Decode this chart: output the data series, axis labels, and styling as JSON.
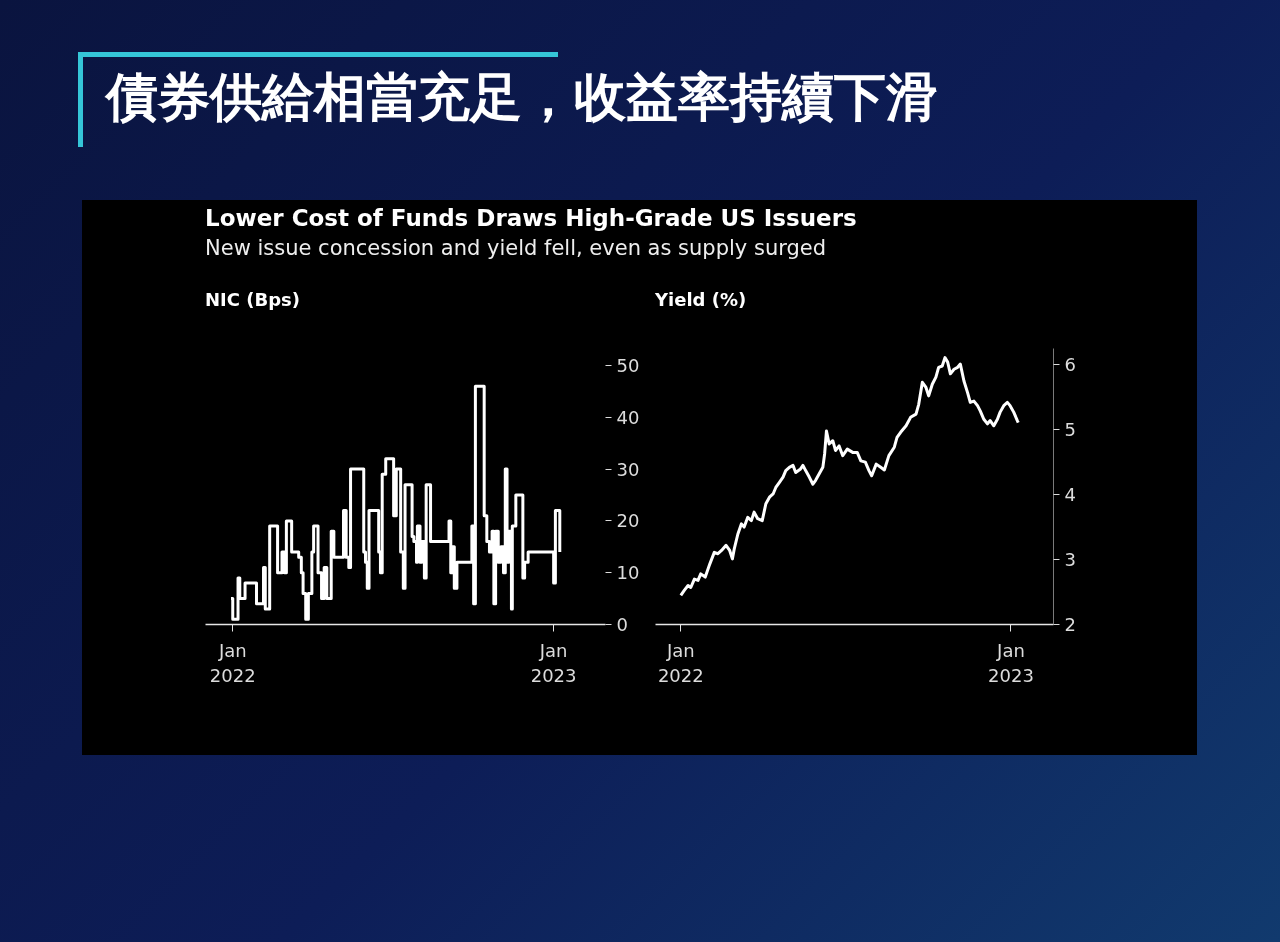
{
  "chart_data": [
    {
      "type": "other",
      "title": "債券供給相當充足，收益率持續下滑"
    },
    {
      "type": "step",
      "title": "Lower Cost of Funds Draws High-Grade US Issuers",
      "subtitle": "New issue concession and yield fell, even as supply surged",
      "ylabel": "NIC (Bps)",
      "color": "#ffffff",
      "x": [
        "2021-12-30",
        "2022-01-01",
        "2022-01-07",
        "2022-01-09",
        "2022-01-15",
        "2022-01-28",
        "2022-02-05",
        "2022-02-07",
        "2022-02-12",
        "2022-02-21",
        "2022-02-26",
        "2022-03-01",
        "2022-03-03",
        "2022-03-09",
        "2022-03-17",
        "2022-03-20",
        "2022-03-22",
        "2022-03-25",
        "2022-03-28",
        "2022-04-01",
        "2022-04-03",
        "2022-04-08",
        "2022-04-12",
        "2022-04-15",
        "2022-04-18",
        "2022-04-23",
        "2022-04-26",
        "2022-05-07",
        "2022-05-10",
        "2022-05-13",
        "2022-05-15",
        "2022-05-30",
        "2022-06-01",
        "2022-06-03",
        "2022-06-05",
        "2022-06-16",
        "2022-06-18",
        "2022-06-20",
        "2022-06-24",
        "2022-07-03",
        "2022-07-06",
        "2022-07-11",
        "2022-07-14",
        "2022-07-16",
        "2022-07-24",
        "2022-07-26",
        "2022-07-29",
        "2022-07-30",
        "2022-08-02",
        "2022-08-04",
        "2022-08-07",
        "2022-08-09",
        "2022-08-14",
        "2022-09-04",
        "2022-09-06",
        "2022-09-08",
        "2022-09-10",
        "2022-09-13",
        "2022-09-30",
        "2022-10-02",
        "2022-10-04",
        "2022-10-14",
        "2022-10-17",
        "2022-10-20",
        "2022-10-23",
        "2022-10-25",
        "2022-10-27",
        "2022-10-30",
        "2022-11-02",
        "2022-11-05",
        "2022-11-07",
        "2022-11-09",
        "2022-11-11",
        "2022-11-14",
        "2022-11-15",
        "2022-11-19",
        "2022-11-27",
        "2022-11-29",
        "2022-12-03",
        "2023-01-01",
        "2023-01-03",
        "2023-01-08"
      ],
      "values": [
        5,
        1,
        9,
        5,
        8,
        4,
        11,
        3,
        19,
        10,
        14,
        10,
        20,
        14,
        13,
        10,
        6,
        1,
        6,
        14,
        19,
        10,
        5,
        11,
        5,
        18,
        13,
        22,
        13,
        11,
        30,
        14,
        12,
        7,
        22,
        14,
        10,
        29,
        32,
        21,
        30,
        14,
        7,
        27,
        17,
        16,
        12,
        19,
        12,
        16,
        9,
        27,
        16,
        20,
        10,
        15,
        7,
        12,
        19,
        4,
        46,
        21,
        16,
        14,
        18,
        4,
        18,
        12,
        15,
        10,
        30,
        12,
        18,
        3,
        19,
        25,
        9,
        12,
        14,
        8,
        22,
        14
      ],
      "xlim": [
        "2021-12-01",
        "2023-03-01"
      ],
      "xticks": [
        {
          "value": "2022-01-01",
          "label": "Jan\n2022"
        },
        {
          "value": "2023-01-01",
          "label": "Jan\n2023"
        }
      ],
      "ylim": [
        0,
        50
      ],
      "yticks": [
        0,
        10,
        20,
        30,
        40,
        50
      ]
    },
    {
      "type": "line",
      "ylabel": "Yield (%)",
      "color": "#ffffff",
      "x": [
        "2022-01-01",
        "2022-01-05",
        "2022-01-09",
        "2022-01-12",
        "2022-01-16",
        "2022-01-20",
        "2022-01-23",
        "2022-01-28",
        "2022-02-02",
        "2022-02-07",
        "2022-02-11",
        "2022-02-15",
        "2022-02-20",
        "2022-02-24",
        "2022-02-27",
        "2022-03-01",
        "2022-03-05",
        "2022-03-09",
        "2022-03-12",
        "2022-03-16",
        "2022-03-20",
        "2022-03-23",
        "2022-03-27",
        "2022-04-01",
        "2022-04-05",
        "2022-04-09",
        "2022-04-13",
        "2022-04-16",
        "2022-04-20",
        "2022-04-24",
        "2022-04-27",
        "2022-05-01",
        "2022-05-05",
        "2022-05-08",
        "2022-05-13",
        "2022-05-16",
        "2022-05-19",
        "2022-05-23",
        "2022-05-27",
        "2022-05-30",
        "2022-06-03",
        "2022-06-07",
        "2022-06-09",
        "2022-06-11",
        "2022-06-14",
        "2022-06-18",
        "2022-06-21",
        "2022-06-25",
        "2022-06-29",
        "2022-07-04",
        "2022-07-10",
        "2022-07-15",
        "2022-07-19",
        "2022-07-24",
        "2022-07-28",
        "2022-07-31",
        "2022-08-05",
        "2022-08-10",
        "2022-08-14",
        "2022-08-19",
        "2022-08-25",
        "2022-08-28",
        "2022-09-01",
        "2022-09-07",
        "2022-09-12",
        "2022-09-18",
        "2022-09-21",
        "2022-09-25",
        "2022-09-29",
        "2022-10-02",
        "2022-10-06",
        "2022-10-10",
        "2022-10-13",
        "2022-10-17",
        "2022-10-20",
        "2022-10-23",
        "2022-10-26",
        "2022-10-30",
        "2022-11-03",
        "2022-11-06",
        "2022-11-10",
        "2022-11-14",
        "2022-11-17",
        "2022-11-21",
        "2022-11-25",
        "2022-11-28",
        "2022-12-02",
        "2022-12-06",
        "2022-12-09",
        "2022-12-13",
        "2022-12-17",
        "2022-12-20",
        "2022-12-24",
        "2022-12-28",
        "2022-12-31",
        "2023-01-04",
        "2023-01-08",
        "2023-01-09"
      ],
      "values": [
        2.45,
        2.53,
        2.6,
        2.57,
        2.7,
        2.68,
        2.78,
        2.73,
        2.93,
        3.11,
        3.09,
        3.14,
        3.22,
        3.14,
        3.01,
        3.16,
        3.39,
        3.55,
        3.5,
        3.65,
        3.6,
        3.73,
        3.63,
        3.6,
        3.86,
        3.96,
        4.01,
        4.11,
        4.19,
        4.27,
        4.37,
        4.42,
        4.45,
        4.34,
        4.39,
        4.45,
        4.37,
        4.27,
        4.16,
        4.22,
        4.32,
        4.42,
        4.63,
        4.98,
        4.78,
        4.83,
        4.68,
        4.75,
        4.6,
        4.7,
        4.65,
        4.65,
        4.52,
        4.5,
        4.37,
        4.29,
        4.47,
        4.42,
        4.38,
        4.6,
        4.73,
        4.88,
        4.96,
        5.06,
        5.19,
        5.24,
        5.39,
        5.73,
        5.65,
        5.52,
        5.7,
        5.81,
        5.96,
        5.98,
        6.11,
        6.04,
        5.86,
        5.93,
        5.96,
        6.01,
        5.75,
        5.57,
        5.42,
        5.44,
        5.37,
        5.29,
        5.16,
        5.09,
        5.14,
        5.06,
        5.16,
        5.27,
        5.37,
        5.42,
        5.37,
        5.27,
        5.14,
        5.11
      ],
      "xlim": [
        "2021-12-04",
        "2023-02-17"
      ],
      "xticks": [
        {
          "value": "2022-01-01",
          "label": "Jan\n2022"
        },
        {
          "value": "2023-01-01",
          "label": "Jan\n2023"
        }
      ],
      "ylim": [
        2,
        6.25
      ],
      "yticks": [
        2,
        3,
        4,
        5,
        6
      ]
    }
  ]
}
